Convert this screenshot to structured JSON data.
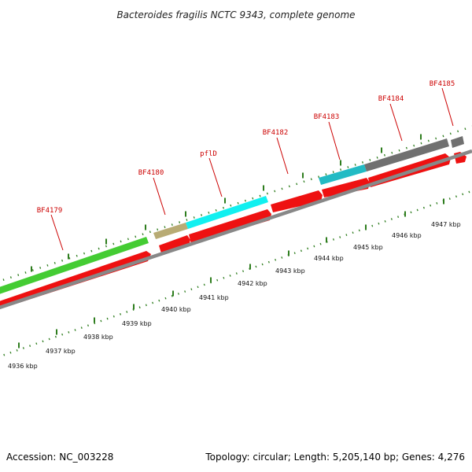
{
  "title": "Bacteroides fragilis NCTC 9343, complete genome",
  "footer": {
    "accession": "Accession: NC_003228",
    "summary": "Topology: circular; Length: 5,205,140 bp; Genes: 4,276"
  },
  "colors": {
    "label_red": "#cc0000",
    "leader_red": "#cc0000",
    "tick_green": "#2e7d1e",
    "backbone_gray": "#888888",
    "cds_red": "#ee1111",
    "gene_green": "#44cc33",
    "gene_khaki": "#b8ab74",
    "gene_cyan": "#11f0f0",
    "gene_teal": "#22bbc4",
    "gene_gray": "#707070"
  },
  "scale": {
    "unit": "kbp",
    "ticks": [
      4936,
      4937,
      4938,
      4939,
      4940,
      4941,
      4942,
      4943,
      4944,
      4945,
      4946,
      4947
    ],
    "tick_labels": [
      "4936 kbp",
      "4937 kbp",
      "4938 kbp",
      "4939 kbp",
      "4940 kbp",
      "4941 kbp",
      "4942 kbp",
      "4943 kbp",
      "4944 kbp",
      "4945 kbp",
      "4946 kbp",
      "4947 kbp"
    ]
  },
  "genes": [
    {
      "name": "BF4179",
      "color_key": "gene_green"
    },
    {
      "name": "BF4180",
      "color_key": "gene_khaki"
    },
    {
      "name": "pflD",
      "color_key": "gene_cyan"
    },
    {
      "name": "BF4182",
      "color_key": "cds_red"
    },
    {
      "name": "BF4183",
      "color_key": "gene_teal"
    },
    {
      "name": "BF4184",
      "color_key": "gene_gray"
    },
    {
      "name": "BF4185",
      "color_key": "gene_gray"
    }
  ]
}
